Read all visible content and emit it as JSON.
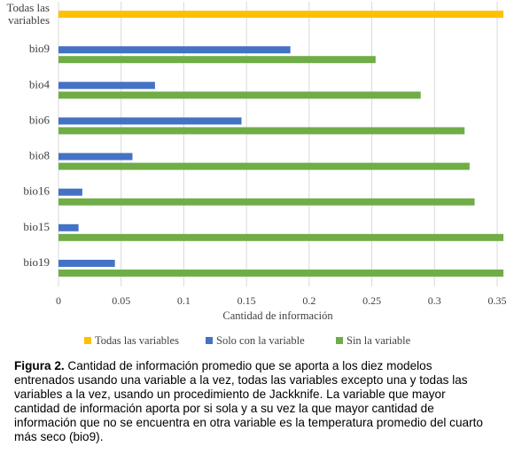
{
  "chart_data": {
    "type": "bar",
    "orientation": "horizontal",
    "categories": [
      "Todas las variables",
      "bio9",
      "bio4",
      "bio6",
      "bio8",
      "bio16",
      "bio15",
      "bio19"
    ],
    "series": [
      {
        "name": "Todas las variables",
        "color": "#ffc000",
        "values": [
          0.355,
          null,
          null,
          null,
          null,
          null,
          null,
          null
        ]
      },
      {
        "name": "Solo con la variable",
        "color": "#4472c4",
        "values": [
          null,
          0.185,
          0.077,
          0.146,
          0.059,
          0.019,
          0.016,
          0.045
        ]
      },
      {
        "name": "Sin la variable",
        "color": "#70ad47",
        "values": [
          null,
          0.253,
          0.289,
          0.324,
          0.328,
          0.332,
          0.355,
          0.355
        ]
      }
    ],
    "xlabel": "Cantidad de información",
    "ylabel": "",
    "xlim": [
      0,
      0.35
    ],
    "x_ticks": [
      "0",
      "0.05",
      "0.1",
      "0.15",
      "0.2",
      "0.25",
      "0.3",
      "0.35"
    ],
    "grid": "vertical",
    "legend_position": "bottom"
  },
  "caption": {
    "label": "Figura 2.",
    "text": " Cantidad de información promedio que se aporta a los diez modelos entrenados usando una variable a la vez, todas las variables excepto una y todas las variables a la vez, usando un procedimiento de Jackknife. La variable que mayor cantidad de información aporta por si sola y a su vez la que mayor cantidad de información que no se encuentra en otra variable es la temperatura promedio del cuarto más seco (bio9)."
  }
}
